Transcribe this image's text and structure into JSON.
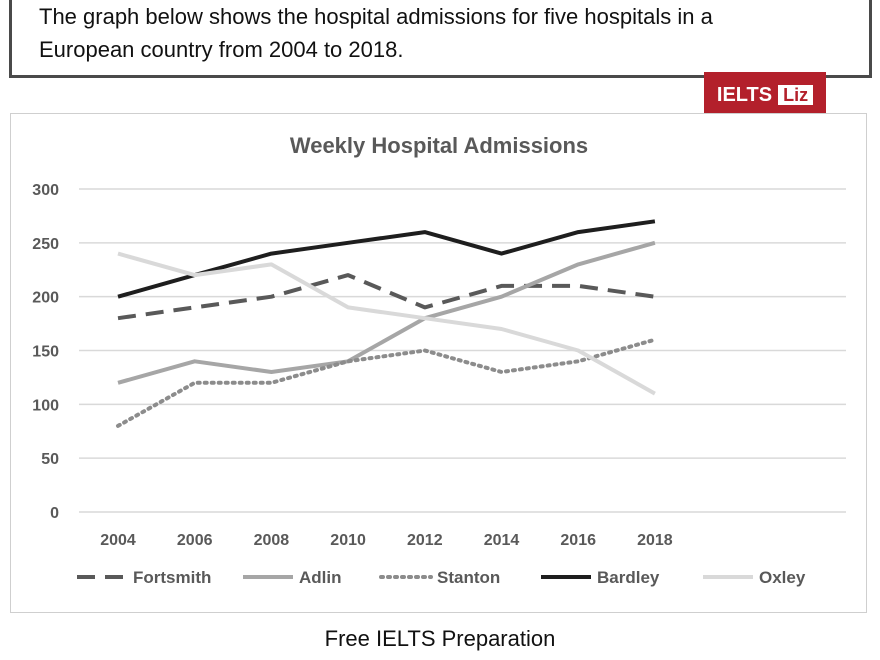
{
  "prompt": {
    "line1": "The graph below shows the hospital admissions for five hospitals in a",
    "line2": "European country from 2004 to 2018."
  },
  "badge": {
    "text": "IELTS",
    "liz": "Liz"
  },
  "footer": {
    "text": "Free IELTS Preparation"
  },
  "chart_data": {
    "type": "line",
    "title": "Weekly Hospital Admissions",
    "xlabel": "",
    "ylabel": "",
    "categories": [
      "2004",
      "2006",
      "2008",
      "2010",
      "2012",
      "2014",
      "2016",
      "2018"
    ],
    "ylim": [
      0,
      300
    ],
    "yticks": [
      0,
      50,
      100,
      150,
      200,
      250,
      300
    ],
    "grid": true,
    "legend_position": "bottom",
    "series": [
      {
        "name": "Fortsmith",
        "values": [
          180,
          190,
          200,
          220,
          190,
          210,
          210,
          200
        ],
        "color": "#595959",
        "style": "dashed"
      },
      {
        "name": "Adlin",
        "values": [
          120,
          140,
          130,
          140,
          180,
          200,
          230,
          250
        ],
        "color": "#a6a6a6",
        "style": "solid"
      },
      {
        "name": "Stanton",
        "values": [
          80,
          120,
          120,
          140,
          150,
          130,
          140,
          160
        ],
        "color": "#8c8c8c",
        "style": "dotted"
      },
      {
        "name": "Bardley",
        "values": [
          200,
          220,
          240,
          250,
          260,
          240,
          260,
          270
        ],
        "color": "#1e1e1e",
        "style": "solid"
      },
      {
        "name": "Oxley",
        "values": [
          240,
          220,
          230,
          190,
          180,
          170,
          150,
          110
        ],
        "color": "#d9d9d9",
        "style": "solid"
      }
    ]
  }
}
